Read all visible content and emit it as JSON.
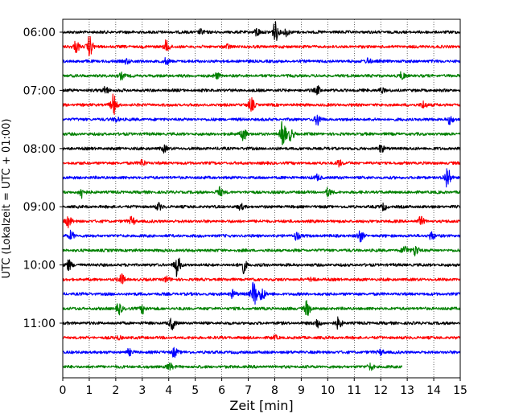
{
  "chart_data": {
    "type": "line",
    "title": "",
    "xlabel": "Zeit  [min]",
    "ylabel": "UTC (Lokalzeit = UTC + 01:00)",
    "xlim": [
      0,
      15
    ],
    "x_ticks": [
      "0",
      "1",
      "2",
      "3",
      "4",
      "5",
      "6",
      "7",
      "8",
      "9",
      "10",
      "11",
      "12",
      "13",
      "14",
      "15"
    ],
    "y_tick_labels": [
      "06:00",
      "07:00",
      "08:00",
      "09:00",
      "10:00",
      "11:00"
    ],
    "grid": "vertical dotted lines at each minute",
    "trace_colors": [
      "#000000",
      "#ff0000",
      "#0000ff",
      "#008000"
    ],
    "traces": [
      {
        "start": "06:00",
        "end_min": 15,
        "events": [
          [
            7.3,
            0.35
          ],
          [
            8.0,
            0.8
          ],
          [
            8.4,
            0.3
          ],
          [
            5.2,
            0.2
          ]
        ]
      },
      {
        "start": "06:15",
        "end_min": 15,
        "events": [
          [
            0.5,
            0.45
          ],
          [
            1.0,
            0.75
          ],
          [
            3.9,
            0.45
          ],
          [
            6.2,
            0.15
          ]
        ]
      },
      {
        "start": "06:30",
        "end_min": 15,
        "events": [
          [
            2.4,
            0.2
          ],
          [
            3.9,
            0.2
          ],
          [
            11.5,
            0.25
          ]
        ]
      },
      {
        "start": "06:45",
        "end_min": 15,
        "events": [
          [
            2.2,
            0.25
          ],
          [
            5.8,
            0.2
          ],
          [
            12.8,
            0.25
          ]
        ]
      },
      {
        "start": "07:00",
        "end_min": 15,
        "events": [
          [
            1.6,
            0.3
          ],
          [
            9.6,
            0.3
          ],
          [
            12.0,
            0.2
          ]
        ]
      },
      {
        "start": "07:15",
        "end_min": 15,
        "events": [
          [
            1.9,
            0.8
          ],
          [
            7.1,
            0.5
          ],
          [
            13.6,
            0.3
          ]
        ]
      },
      {
        "start": "07:30",
        "end_min": 15,
        "events": [
          [
            2.0,
            0.2
          ],
          [
            9.6,
            0.45
          ],
          [
            14.6,
            0.3
          ]
        ]
      },
      {
        "start": "07:45",
        "end_min": 15,
        "events": [
          [
            6.8,
            0.6
          ],
          [
            8.3,
            1.0
          ],
          [
            8.6,
            0.45
          ]
        ]
      },
      {
        "start": "08:00",
        "end_min": 15,
        "events": [
          [
            3.8,
            0.25
          ],
          [
            12.0,
            0.25
          ]
        ]
      },
      {
        "start": "08:15",
        "end_min": 15,
        "events": [
          [
            3.0,
            0.25
          ],
          [
            10.4,
            0.25
          ]
        ]
      },
      {
        "start": "08:30",
        "end_min": 15,
        "events": [
          [
            9.6,
            0.2
          ],
          [
            14.5,
            0.9
          ]
        ]
      },
      {
        "start": "08:45",
        "end_min": 15,
        "events": [
          [
            0.7,
            0.45
          ],
          [
            5.9,
            0.35
          ],
          [
            10.0,
            0.3
          ]
        ]
      },
      {
        "start": "09:00",
        "end_min": 15,
        "events": [
          [
            3.6,
            0.25
          ],
          [
            6.7,
            0.2
          ],
          [
            12.1,
            0.25
          ]
        ]
      },
      {
        "start": "09:15",
        "end_min": 15,
        "events": [
          [
            0.2,
            0.4
          ],
          [
            2.6,
            0.3
          ],
          [
            13.5,
            0.3
          ]
        ]
      },
      {
        "start": "09:30",
        "end_min": 15,
        "events": [
          [
            0.3,
            0.35
          ],
          [
            8.8,
            0.35
          ],
          [
            11.2,
            0.45
          ],
          [
            13.9,
            0.3
          ]
        ]
      },
      {
        "start": "09:45",
        "end_min": 15,
        "events": [
          [
            12.9,
            0.35
          ],
          [
            13.3,
            0.45
          ]
        ]
      },
      {
        "start": "10:00",
        "end_min": 15,
        "events": [
          [
            0.2,
            0.4
          ],
          [
            4.3,
            0.8
          ],
          [
            6.8,
            0.6
          ]
        ]
      },
      {
        "start": "10:15",
        "end_min": 15,
        "events": [
          [
            2.2,
            0.4
          ],
          [
            3.9,
            0.2
          ],
          [
            9.4,
            0.2
          ]
        ]
      },
      {
        "start": "10:30",
        "end_min": 15,
        "events": [
          [
            6.4,
            0.3
          ],
          [
            7.2,
            1.0
          ],
          [
            7.5,
            0.55
          ]
        ]
      },
      {
        "start": "10:45",
        "end_min": 15,
        "events": [
          [
            2.1,
            0.45
          ],
          [
            3.0,
            0.35
          ],
          [
            9.2,
            0.6
          ]
        ]
      },
      {
        "start": "11:00",
        "end_min": 15,
        "events": [
          [
            4.1,
            0.45
          ],
          [
            9.6,
            0.35
          ],
          [
            10.4,
            0.4
          ]
        ]
      },
      {
        "start": "11:15",
        "end_min": 15,
        "events": [
          [
            2.1,
            0.12
          ],
          [
            8.0,
            0.12
          ]
        ]
      },
      {
        "start": "11:30",
        "end_min": 15,
        "events": [
          [
            2.5,
            0.2
          ],
          [
            4.2,
            0.35
          ],
          [
            12.0,
            0.2
          ]
        ]
      },
      {
        "start": "11:45",
        "end_min": 12.8,
        "events": [
          [
            4.0,
            0.3
          ],
          [
            11.6,
            0.25
          ]
        ]
      }
    ]
  }
}
